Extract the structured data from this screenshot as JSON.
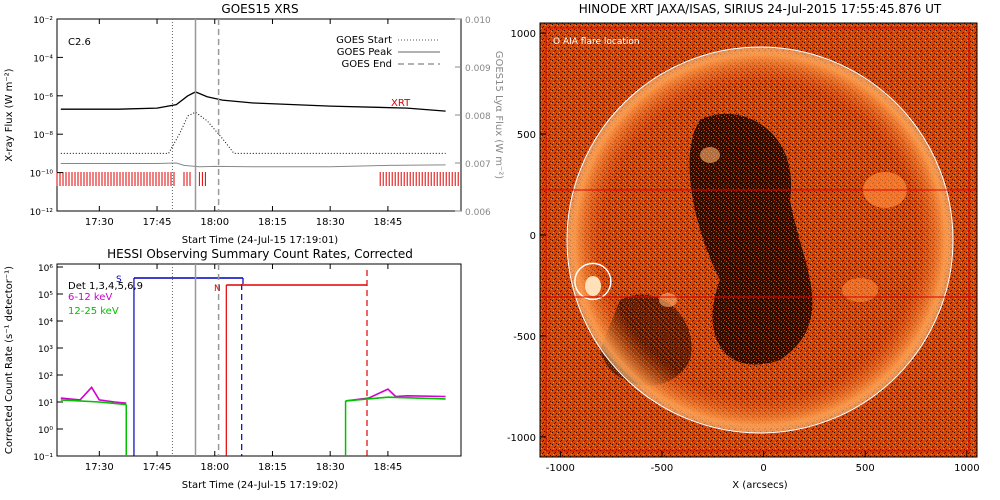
{
  "chart_data": [
    {
      "type": "line",
      "title": "GOES15 XRS",
      "xlabel": "Start Time (24-Jul-15 17:19:01)",
      "ylabel": "X-ray Flux (W m⁻²)",
      "y2label": "GOES15 Lyα Flux (W m⁻²)",
      "scale": "log",
      "xlim_minutes": [
        17.35,
        19.1
      ],
      "x_ticks": [
        "17:30",
        "17:45",
        "18:00",
        "18:15",
        "18:30",
        "18:45"
      ],
      "y_ticks": [
        "10⁻²",
        "10⁻⁴",
        "10⁻⁶",
        "10⁻⁸",
        "10⁻¹⁰",
        "10⁻¹²"
      ],
      "y2_ticks": [
        "0.010",
        "0.009",
        "0.008",
        "0.007",
        "0.006"
      ],
      "y2lim": [
        0.006,
        0.01
      ],
      "annotation": "C2.6",
      "xrt_label": "XRT",
      "legend": [
        "GOES Start",
        "GOES Peak",
        "GOES End"
      ],
      "legend_position": "top-right",
      "events": {
        "start": "17:49",
        "peak": "17:55",
        "end": "18:01"
      },
      "series": [
        {
          "name": "long",
          "x": [
            "17:20",
            "17:35",
            "17:45",
            "17:50",
            "17:53",
            "17:55",
            "17:58",
            "18:02",
            "18:10",
            "18:30",
            "18:50",
            "19:00"
          ],
          "values": [
            2e-07,
            2e-07,
            2.3e-07,
            3.5e-07,
            1e-06,
            1.6e-06,
            9e-07,
            6e-07,
            4.2e-07,
            2.9e-07,
            2.3e-07,
            1.6e-07
          ]
        },
        {
          "name": "short",
          "x": [
            "17:20",
            "17:48",
            "17:51",
            "17:53",
            "17:55",
            "17:58",
            "18:02",
            "18:05",
            "18:08",
            "18:30",
            "19:00"
          ],
          "values": [
            1e-09,
            1e-09,
            1.2e-08,
            9e-08,
            1.4e-07,
            5e-08,
            6e-09,
            1e-09,
            1e-09,
            1e-09,
            1e-09
          ]
        },
        {
          "name": "lyman",
          "x": [
            "17:20",
            "17:45",
            "17:50",
            "17:52",
            "17:56",
            "18:00",
            "18:10",
            "18:30",
            "18:45",
            "19:00"
          ],
          "values": [
            0.00699,
            0.00699,
            0.007,
            0.00695,
            0.00692,
            0.00693,
            0.00692,
            0.00692,
            0.00695,
            0.00696
          ]
        }
      ]
    },
    {
      "type": "line",
      "title": "HESSI Observing Summary Count Rates, Corrected",
      "xlabel": "Start Time (24-Jul-15 17:19:02)",
      "ylabel": "Corrected Count Rate (s⁻¹ detector⁻¹)",
      "scale": "log",
      "x_ticks": [
        "17:30",
        "17:45",
        "18:00",
        "18:15",
        "18:30",
        "18:45"
      ],
      "y_ticks": [
        "10⁶",
        "10⁵",
        "10⁴",
        "10³",
        "10²",
        "10¹",
        "10⁰",
        "10⁻¹"
      ],
      "legend": [
        "Det 1,3,4,5,6,9",
        "6-12 keV",
        "12-25 keV"
      ],
      "legend_position": "top-left",
      "flag_labels": {
        "s": "S",
        "n": "N"
      },
      "series": [
        {
          "name": "6-12 keV",
          "x": [
            "17:20",
            "17:25",
            "17:28",
            "17:30",
            "17:34",
            "17:37"
          ],
          "values": [
            14,
            12,
            35,
            12,
            10,
            9
          ]
        },
        {
          "name": "6-12 keV",
          "x": [
            "18:34",
            "18:40",
            "18:45",
            "18:47",
            "18:50",
            "19:00"
          ],
          "values": [
            11,
            14,
            30,
            16,
            17,
            16
          ]
        },
        {
          "name": "12-25 keV",
          "x": [
            "17:20",
            "17:30",
            "17:37"
          ],
          "values": [
            12,
            10,
            8
          ]
        },
        {
          "name": "12-25 keV",
          "x": [
            "18:34",
            "18:45",
            "19:00"
          ],
          "values": [
            11,
            15,
            13
          ]
        }
      ]
    },
    {
      "type": "heatmap",
      "title": "HINODE XRT JAXA/ISAS, SIRIUS 24-Jul-2015 17:55:45.876 UT",
      "xlabel": "X (arcsecs)",
      "ylabel": "Y (arcsecs)",
      "xlim": [
        -1100,
        1050
      ],
      "ylim": [
        -1100,
        1050
      ],
      "x_ticks": [
        "-1000",
        "-500",
        "0",
        "500",
        "1000"
      ],
      "y_ticks": [
        "1000",
        "500",
        "0",
        "-500",
        "-1000"
      ],
      "legend": "O AIA flare location",
      "legend_position": "top-left",
      "solar_radius": 945,
      "flare_location": [
        -840,
        -230
      ],
      "colors": {
        "background": "#c23b00",
        "disk": "#e4530d",
        "limb": "#ffffff",
        "bright": "#ffd9a8"
      }
    }
  ]
}
